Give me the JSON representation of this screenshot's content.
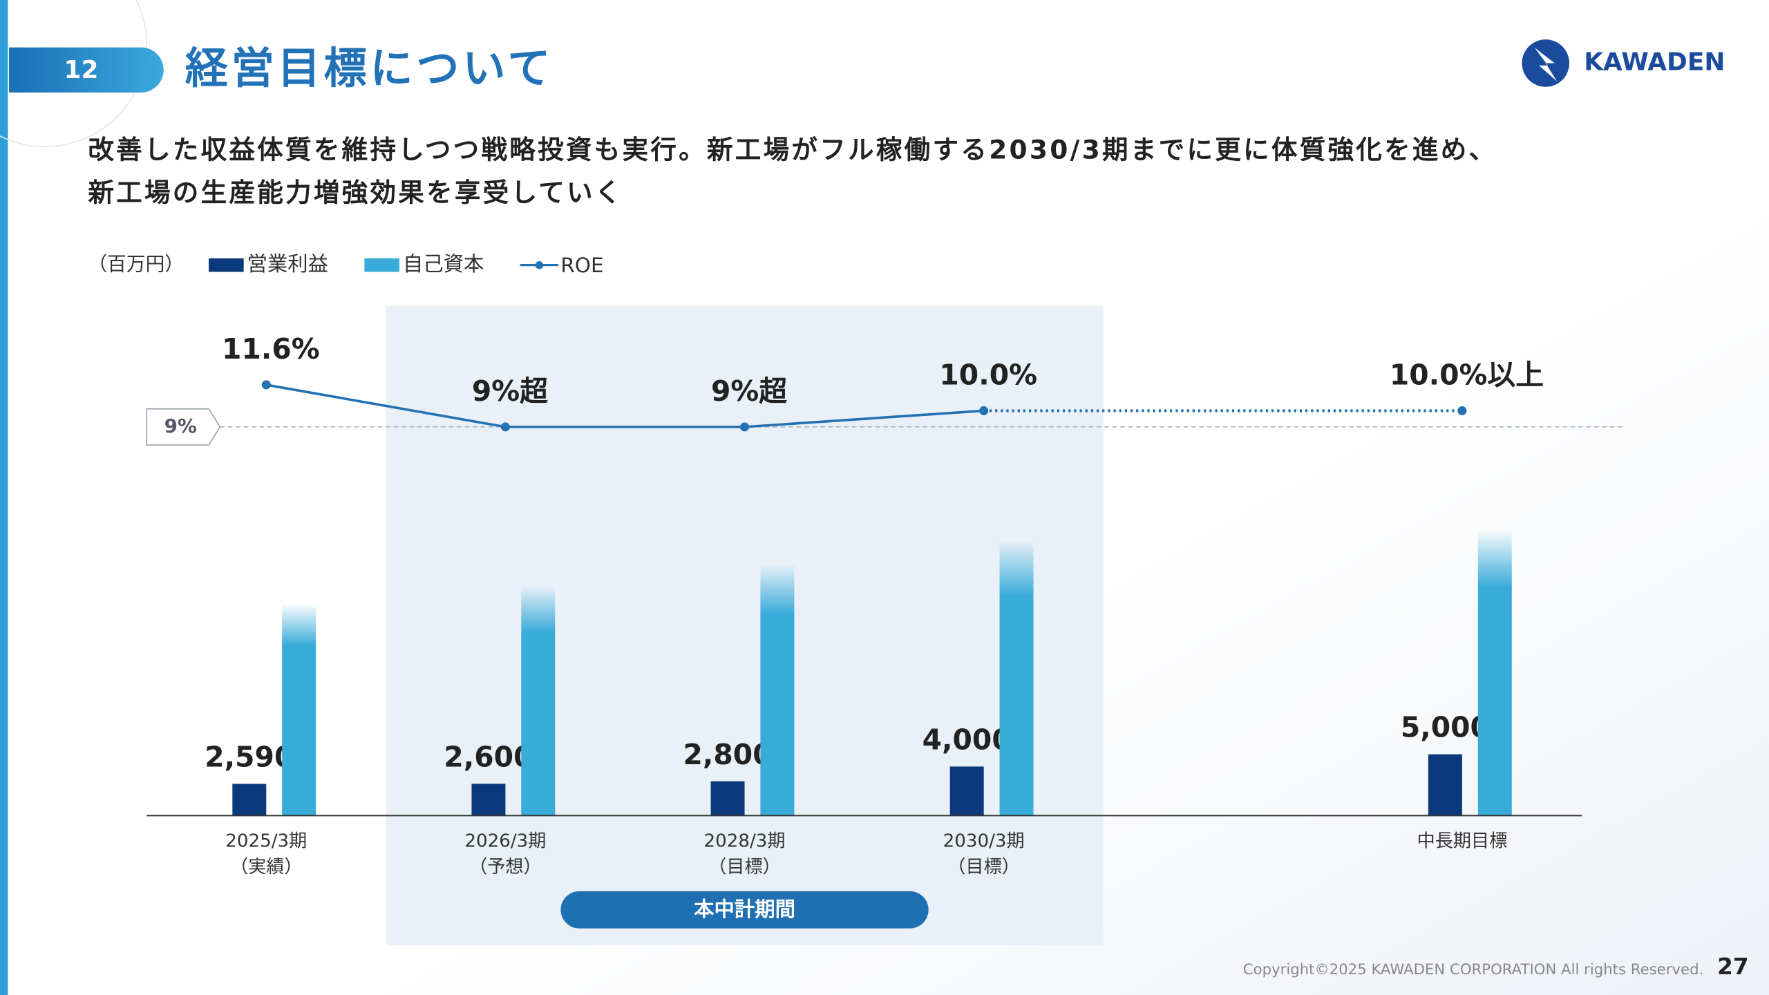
{
  "page_number": "12",
  "title": "経営目標について",
  "logo": "KAWADEN",
  "subtitle": [
    "改善した収益体質を維持しつつ戦略投資も実行。新工場がフル稼働する2030/3期までに更に体質強化を進め、",
    "新工場の生産能力増強効果を享受していく"
  ],
  "copyright": "Copyright©2025 KAWADEN CORPORATION All rights Reserved.",
  "slide_number": "27",
  "chart_data": {
    "type": "bar",
    "unit_label": "（百万円）",
    "categories": [
      "2025/3期",
      "2026/3期",
      "2028/3期",
      "2030/3期",
      null,
      "中長期目標"
    ],
    "category_sublabels": [
      "（実績）",
      "（予想）",
      "（目標）",
      "（目標）",
      null,
      null
    ],
    "ylim": [
      0,
      40000
    ],
    "y2lim": [
      -15,
      15.3
    ],
    "series": [
      {
        "name": "営業利益",
        "type": "bar",
        "color": "#0b3a7c",
        "values": [
          2590,
          2600,
          2800,
          4000,
          null,
          5000
        ],
        "value_labels": [
          "2,590",
          "2,600",
          "2,800",
          "4,000",
          null,
          "5,000"
        ]
      },
      {
        "name": "自己資本",
        "type": "bar",
        "color": "#39abd9",
        "values": [
          17300,
          18700,
          20500,
          22400,
          null,
          23300
        ],
        "fade_top": true
      },
      {
        "name": "ROE",
        "type": "line",
        "axis": "y2",
        "color": "#2271b3",
        "values": [
          11.6,
          9,
          9,
          10.0,
          null,
          10.0
        ],
        "value_labels": [
          "11.6%",
          "9%超",
          "9%超",
          "10.0%",
          null,
          "10.0%以上"
        ],
        "gap_line_style": "dotted"
      }
    ],
    "reference_line": {
      "value": 9,
      "label": "9%"
    },
    "highlight": {
      "label": "本中計期間",
      "from": 1,
      "to": 3,
      "color": "#e9f0f8"
    }
  }
}
